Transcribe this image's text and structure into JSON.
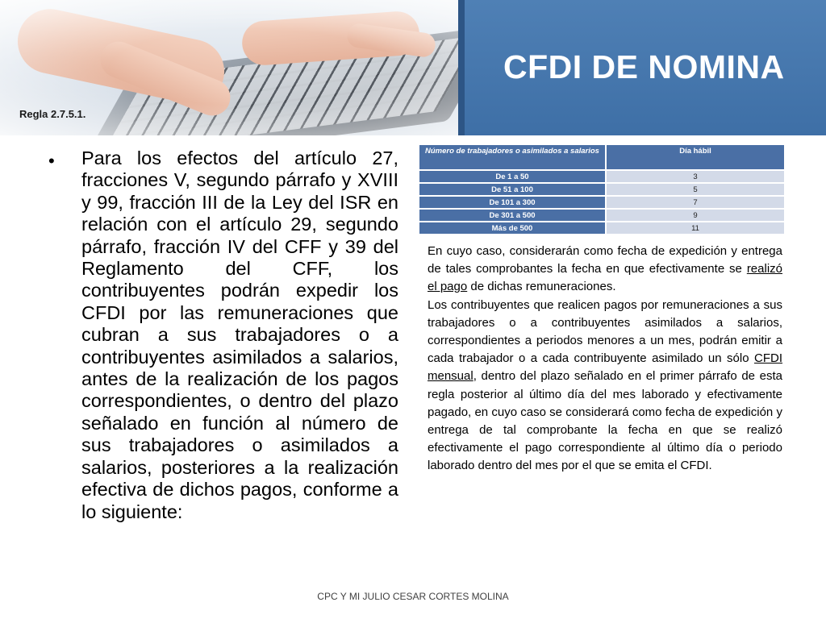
{
  "header": {
    "rule_label": "Regla 2.7.5.1.",
    "title": "CFDI DE NOMINA"
  },
  "bullet": {
    "text": "Para los efectos del artículo 27, fracciones V, segundo párrafo y XVIII y 99, fracción III de la Ley del ISR en relación con el artículo 29, segundo párrafo, fracción IV del CFF y 39 del Reglamento del CFF, los contribuyentes podrán expedir los CFDI por las remuneraciones que cubran a sus trabajadores o a contribuyentes asimilados a salarios, antes de la realización de los pagos correspondientes, o dentro del plazo señalado en función al número de sus trabajadores o asimilados a salarios, posteriores a la realización efectiva de dichos pagos, conforme a lo siguiente:"
  },
  "table": {
    "headers": [
      "Número de trabajadores o asimilados a salarios",
      "Día hábil"
    ],
    "rows": [
      [
        "De 1 a 50",
        "3"
      ],
      [
        "De 51 a 100",
        "5"
      ],
      [
        "De 101 a 300",
        "7"
      ],
      [
        "De 301 a 500",
        "9"
      ],
      [
        "Más de 500",
        "11"
      ]
    ]
  },
  "right": {
    "p1_a": "En cuyo caso, considerarán como fecha de expedición y entrega de tales comprobantes la fecha en que efectivamente se ",
    "p1_u": "realizó el pago",
    "p1_b": " de dichas remuneraciones.",
    "p2_a": "Los contribuyentes que realicen pagos por remuneraciones a sus trabajadores o a contribuyentes asimilados a salarios, correspondientes a periodos menores a un mes, podrán emitir a cada trabajador o a cada contribuyente asimilado un sólo ",
    "p2_u": "CFDI mensual",
    "p2_b": ", dentro del plazo señalado en el primer párrafo de esta regla posterior al último día del mes laborado y efectivamente pagado, en cuyo caso se considerará como fecha de expedición y entrega de tal comprobante la fecha en que se realizó efectivamente el pago correspondiente al último día o periodo laborado dentro del mes por el que se emita el CFDI."
  },
  "footer": {
    "text": "CPC Y MI JULIO CESAR CORTES MOLINA"
  },
  "colors": {
    "title_bg": "#4a79ae",
    "table_header": "#4a6fa5",
    "table_cell": "#d3dae8"
  }
}
